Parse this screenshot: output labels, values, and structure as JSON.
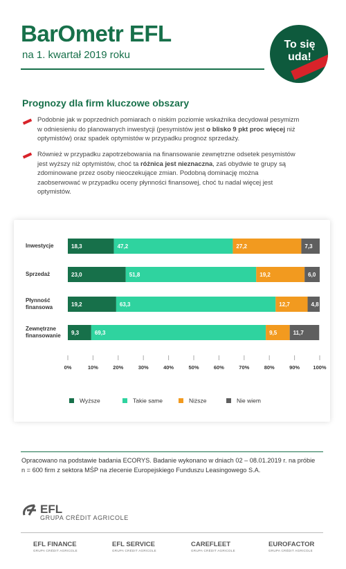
{
  "header": {
    "title": "BarOmetr EFL",
    "subtitle": "na 1. kwartał 2019 roku",
    "badge": [
      "To się",
      "uda!"
    ]
  },
  "section_title": "Prognozy dla firm kluczowe obszary",
  "bullets": [
    [
      {
        "text": "Podobnie jak w poprzednich pomiarach o niskim poziomie wskaźnika decydował pesymizm w odniesieniu do planowanych inwestycji (pesymistów jest ",
        "bold": false
      },
      {
        "text": "o blisko 9 pkt proc więcej",
        "bold": true
      },
      {
        "text": " niż optymistów) oraz spadek optymistów w przypadku prognoz sprzedaży.",
        "bold": false
      }
    ],
    [
      {
        "text": "Również w przypadku zapotrzebowania na finansowanie zewnętrzne odsetek pesymistów jest wyższy niż optymistów, choć ta ",
        "bold": false
      },
      {
        "text": "różnica jest nieznaczna",
        "bold": true
      },
      {
        "text": ", zaś obydwie te grupy są zdominowane przez osoby nieoczekujące zmian. Podobną dominację można zaobserwować w przypadku oceny płynności finansowej, choć tu nadal więcej jest optymistów.",
        "bold": false
      }
    ]
  ],
  "chart_data": {
    "type": "stacked_bar_horizontal",
    "categories": [
      "Inwestycje",
      "Sprzedaż",
      "Płynność finansowa",
      "Zewnętrzne finansowanie"
    ],
    "series": [
      {
        "name": "Wyższe",
        "color": "#17704a",
        "values": [
          18.3,
          23.0,
          19.2,
          9.3
        ],
        "value_labels": [
          "18,3",
          "23,0",
          "19,2",
          "9,3"
        ]
      },
      {
        "name": "Takie same",
        "color": "#2fd39f",
        "values": [
          47.2,
          51.8,
          63.3,
          69.3
        ],
        "value_labels": [
          "47,2",
          "51,8",
          "63,3",
          "69,3"
        ]
      },
      {
        "name": "Niższe",
        "color": "#f29a1f",
        "values": [
          27.2,
          19.2,
          12.7,
          9.5
        ],
        "value_labels": [
          "27,2",
          "19,2",
          "12,7",
          "9,5"
        ]
      },
      {
        "name": "Nie wiem",
        "color": "#5f5f5f",
        "values": [
          7.3,
          6.0,
          4.8,
          11.7
        ],
        "value_labels": [
          "7,3",
          "6,0",
          "4,8",
          "11,7"
        ]
      }
    ],
    "xlim": [
      0,
      100
    ],
    "xticks": [
      {
        "value": 0,
        "label": "0%"
      },
      {
        "value": 10,
        "label": "10%"
      },
      {
        "value": 20,
        "label": "20%"
      },
      {
        "value": 30,
        "label": "30%"
      },
      {
        "value": 40,
        "label": "40%"
      },
      {
        "value": 50,
        "label": "50%"
      },
      {
        "value": 60,
        "label": "60%"
      },
      {
        "value": 70,
        "label": "70%"
      },
      {
        "value": 80,
        "label": "80%"
      },
      {
        "value": 90,
        "label": "90%"
      },
      {
        "value": 100,
        "label": "100%"
      }
    ]
  },
  "footnote": "Opracowano na podstawie badania ECORYS. Badanie wykonano w dniach 02 – 08.01.2019 r. na próbie n = 600 firm z sektora MŚP na zlecenie Europejskiego Funduszu Leasingowego S.A.",
  "footer": {
    "logo": "EFL",
    "logo_sub": "GRUPA CRÉDIT AGRICOLE",
    "brands": [
      {
        "name": "EFL FINANCE",
        "sub": "GRUPA CRÉDIT AGRICOLE"
      },
      {
        "name": "EFL SERVICE",
        "sub": "GRUPA CRÉDIT AGRICOLE"
      },
      {
        "name": "CAREFLEET",
        "sub": "GRUPA CRÉDIT AGRICOLE"
      },
      {
        "name": "EUROFACTOR",
        "sub": "GRUPA CRÉDIT AGRICOLE"
      }
    ]
  }
}
